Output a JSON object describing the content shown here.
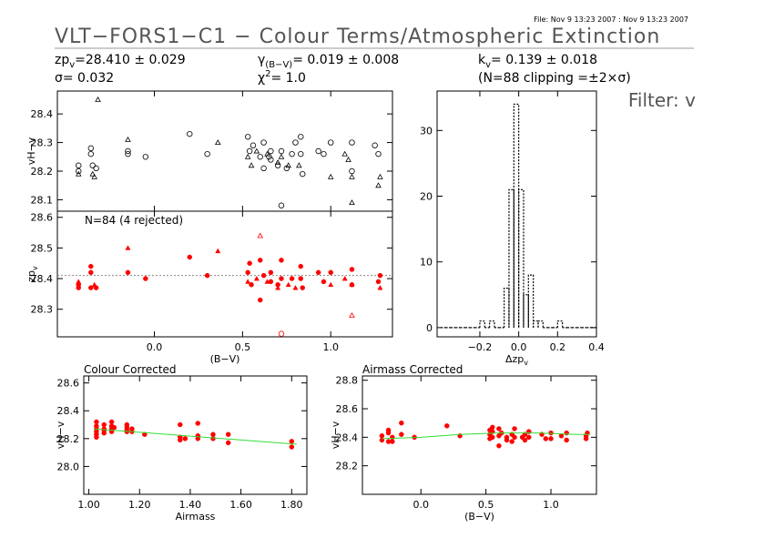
{
  "header": {
    "file": "File: Nov  9 13:23 2007 : Nov  9 13:23 2007",
    "title": "VLT−FORS1−C1 − Colour Terms/Atmospheric Extinction",
    "filter": "Filter: v",
    "stats": [
      {
        "sym": "zp",
        "sub": "v",
        "text": "=28.410 ± 0.029"
      },
      {
        "sym": "γ",
        "sub": "(B−V)",
        "text": "= 0.019 ± 0.008"
      },
      {
        "sym": "k",
        "sub": "v",
        "text": "= 0.139 ± 0.018"
      },
      {
        "text": "σ= 0.032"
      },
      {
        "sym": "χ",
        "sup": "2",
        "text": "=  1.0"
      },
      {
        "text": "(N=88 clipping =±2×σ)"
      }
    ]
  },
  "chart_data": [
    {
      "type": "scatter",
      "ylabel": "vH−v",
      "xlim": [
        -0.55,
        1.35
      ],
      "xticks": [
        0,
        0.5,
        1
      ],
      "ylim": [
        28.06,
        28.48
      ],
      "yticks": [
        28.1,
        28.2,
        28.3,
        28.4
      ],
      "series": [
        {
          "marker": "circle-open",
          "color": "#000000",
          "x": [
            -0.36,
            -0.36,
            -0.35,
            -0.33,
            -0.43,
            -0.43,
            -0.15,
            -0.15,
            -0.05,
            0.2,
            0.3,
            0.53,
            0.54,
            0.56,
            0.6,
            0.62,
            0.62,
            0.65,
            0.66,
            0.66,
            0.7,
            0.72,
            0.75,
            0.78,
            0.8,
            0.83,
            0.83,
            0.84,
            0.93,
            0.96,
            1.0,
            1.12,
            1.12,
            1.25,
            1.27,
            0.72
          ],
          "y": [
            28.28,
            28.26,
            28.22,
            28.21,
            28.22,
            28.2,
            28.27,
            28.26,
            28.25,
            28.33,
            28.26,
            28.32,
            28.27,
            28.29,
            28.25,
            28.21,
            28.3,
            28.25,
            28.27,
            28.24,
            28.22,
            28.27,
            28.21,
            28.26,
            28.3,
            28.32,
            28.26,
            28.19,
            28.27,
            28.26,
            28.3,
            28.3,
            28.2,
            28.29,
            28.26,
            28.08
          ]
        },
        {
          "marker": "triangle-open",
          "color": "#000000",
          "x": [
            -0.32,
            -0.43,
            -0.35,
            -0.34,
            -0.15,
            0.36,
            0.53,
            0.55,
            0.58,
            0.64,
            0.7,
            0.72,
            0.76,
            0.82,
            1.0,
            1.08,
            1.1,
            1.12,
            1.12,
            1.28,
            1.27
          ],
          "y": [
            28.45,
            28.19,
            28.19,
            28.18,
            28.31,
            28.3,
            28.25,
            28.22,
            28.27,
            28.26,
            28.23,
            28.25,
            28.22,
            28.22,
            28.18,
            28.26,
            28.24,
            28.18,
            28.09,
            28.18,
            28.15
          ]
        }
      ]
    },
    {
      "type": "scatter",
      "ylabel": "zp",
      "ylabel_sub": "v",
      "xlabel": "(B−V)",
      "annotation": "N=84 (4 rejected)",
      "xlim": [
        -0.55,
        1.35
      ],
      "xticks": [
        {
          "value": 0,
          "label": "0.0"
        },
        0.5,
        {
          "value": 1,
          "label": "1.0"
        }
      ],
      "ylim": [
        28.21,
        28.62
      ],
      "yticks": [
        28.3,
        28.4,
        28.5,
        28.6
      ],
      "ref_line": 28.41,
      "series": [
        {
          "marker": "circle",
          "color": "#ff0000",
          "x": [
            -0.43,
            -0.43,
            -0.36,
            -0.36,
            -0.36,
            -0.33,
            -0.15,
            -0.05,
            0.2,
            0.3,
            0.53,
            0.54,
            0.55,
            0.6,
            0.6,
            0.62,
            0.66,
            0.66,
            0.7,
            0.72,
            0.72,
            0.78,
            0.83,
            0.83,
            0.84,
            0.93,
            0.96,
            1.0,
            1.12,
            1.12,
            1.27,
            1.28
          ],
          "y": [
            28.37,
            28.38,
            28.44,
            28.42,
            28.37,
            28.37,
            28.42,
            28.4,
            28.47,
            28.41,
            28.42,
            28.45,
            28.38,
            28.46,
            28.33,
            28.41,
            28.42,
            28.39,
            28.38,
            28.46,
            28.4,
            28.4,
            28.44,
            28.4,
            28.37,
            28.42,
            28.39,
            28.42,
            28.43,
            28.38,
            28.39,
            28.41
          ]
        },
        {
          "marker": "triangle",
          "color": "#ff0000",
          "x": [
            -0.43,
            -0.34,
            -0.15,
            0.36,
            0.53,
            0.58,
            0.64,
            0.7,
            0.76,
            0.8,
            1.0,
            1.08,
            1.12,
            1.28
          ],
          "y": [
            28.39,
            28.38,
            28.5,
            28.49,
            28.39,
            28.4,
            28.39,
            28.37,
            28.38,
            28.37,
            28.38,
            28.4,
            28.38,
            28.37
          ]
        },
        {
          "marker": "triangle-open",
          "color": "#ff0000",
          "x": [
            0.6,
            1.12
          ],
          "y": [
            28.54,
            28.28
          ]
        },
        {
          "marker": "circle-open",
          "color": "#ff0000",
          "x": [
            0.72
          ],
          "y": [
            28.22
          ]
        }
      ]
    },
    {
      "type": "histogram",
      "xlabel": "Δzp",
      "xlabel_sub": "v",
      "color": "#000000",
      "xlim": [
        -0.42,
        0.4
      ],
      "xticks": [
        {
          "value": -0.2,
          "label": "−0.2"
        },
        {
          "value": 0,
          "label": "0.0"
        },
        0.2,
        0.4
      ],
      "ylim": [
        -1.4,
        36
      ],
      "yticks": [
        0,
        10,
        20,
        30
      ],
      "bins": [
        -0.4,
        -0.375,
        -0.35,
        -0.325,
        -0.3,
        -0.275,
        -0.25,
        -0.225,
        -0.2,
        -0.175,
        -0.15,
        -0.125,
        -0.1,
        -0.075,
        -0.05,
        -0.025,
        0,
        0.025,
        0.05,
        0.075,
        0.1,
        0.125,
        0.15,
        0.175,
        0.2,
        0.225,
        0.25,
        0.275,
        0.3,
        0.325,
        0.35,
        0.375,
        0.4
      ],
      "counts": [
        0,
        0,
        0,
        0,
        0,
        0,
        0,
        0,
        1,
        0,
        1,
        0,
        0,
        6,
        21,
        34,
        21,
        5,
        8,
        1,
        1,
        0,
        0,
        0,
        1,
        0,
        0,
        0,
        0,
        0,
        0,
        0
      ]
    },
    {
      "type": "scatter",
      "title": "Colour Corrected",
      "ylabel": "vH−v",
      "xlabel": "Airmass",
      "xlim": [
        0.98,
        1.86
      ],
      "xticks": [
        {
          "value": 1,
          "label": "1.00"
        },
        {
          "value": 1.2,
          "label": "1.20"
        },
        {
          "value": 1.4,
          "label": "1.40"
        },
        {
          "value": 1.6,
          "label": "1.60"
        },
        {
          "value": 1.8,
          "label": "1.80"
        }
      ],
      "ylim": [
        27.8,
        28.65
      ],
      "yticks": [
        {
          "value": 28,
          "label": "28.0"
        },
        28.2,
        28.4,
        28.6
      ],
      "series": [
        {
          "marker": "circle",
          "color": "#ff0000",
          "x": [
            1.03,
            1.03,
            1.03,
            1.03,
            1.03,
            1.03,
            1.06,
            1.06,
            1.06,
            1.06,
            1.09,
            1.09,
            1.09,
            1.09,
            1.1,
            1.15,
            1.15,
            1.15,
            1.15,
            1.17,
            1.17,
            1.22,
            1.36,
            1.36,
            1.36,
            1.38,
            1.43,
            1.43,
            1.43,
            1.49,
            1.49,
            1.55,
            1.55,
            1.8,
            1.8
          ],
          "y": [
            28.32,
            28.29,
            28.27,
            28.25,
            28.23,
            28.21,
            28.3,
            28.27,
            28.26,
            28.24,
            28.32,
            28.29,
            28.27,
            28.25,
            28.28,
            28.3,
            28.28,
            28.26,
            28.25,
            28.27,
            28.25,
            28.23,
            28.3,
            28.21,
            28.19,
            28.2,
            28.31,
            28.22,
            28.2,
            28.23,
            28.2,
            28.23,
            28.17,
            28.18,
            28.14
          ]
        },
        {
          "marker": "line",
          "color": "#33dd33",
          "x": [
            1.02,
            1.82
          ],
          "y": [
            28.27,
            28.16
          ]
        }
      ]
    },
    {
      "type": "scatter",
      "title": "Airmass Corrected",
      "ylabel": "vH−v",
      "xlabel": "(B−V)",
      "xlim": [
        -0.45,
        1.35
      ],
      "xticks": [
        {
          "value": 0,
          "label": "0.0"
        },
        0.5,
        {
          "value": 1,
          "label": "1.0"
        }
      ],
      "ylim": [
        28.0,
        28.83
      ],
      "yticks": [
        28.2,
        28.4,
        28.6,
        28.8
      ],
      "series": [
        {
          "marker": "circle",
          "color": "#ff0000",
          "x": [
            -0.3,
            -0.3,
            -0.25,
            -0.25,
            -0.25,
            -0.22,
            -0.22,
            -0.15,
            -0.15,
            -0.05,
            0.2,
            0.3,
            0.53,
            0.53,
            0.53,
            0.55,
            0.55,
            0.55,
            0.6,
            0.6,
            0.6,
            0.62,
            0.66,
            0.66,
            0.7,
            0.7,
            0.72,
            0.72,
            0.78,
            0.8,
            0.8,
            0.83,
            0.83,
            0.93,
            0.96,
            1.0,
            1.0,
            1.08,
            1.12,
            1.12,
            1.27,
            1.27,
            1.28
          ],
          "y": [
            28.38,
            28.41,
            28.45,
            28.43,
            28.37,
            28.37,
            28.4,
            28.5,
            28.42,
            28.4,
            28.48,
            28.41,
            28.45,
            28.42,
            28.39,
            28.47,
            28.44,
            28.4,
            28.46,
            28.34,
            28.41,
            28.43,
            28.4,
            28.38,
            28.37,
            28.42,
            28.46,
            28.4,
            28.4,
            28.42,
            28.38,
            28.44,
            28.4,
            28.42,
            28.39,
            28.43,
            28.39,
            28.41,
            28.43,
            28.38,
            28.39,
            28.41,
            28.43
          ]
        },
        {
          "marker": "line",
          "color": "#33dd33",
          "x": [
            -0.3,
            0,
            0.3,
            0.6,
            0.9,
            1.2,
            1.3
          ],
          "y": [
            28.39,
            28.4,
            28.42,
            28.43,
            28.43,
            28.42,
            28.42
          ]
        }
      ]
    }
  ]
}
